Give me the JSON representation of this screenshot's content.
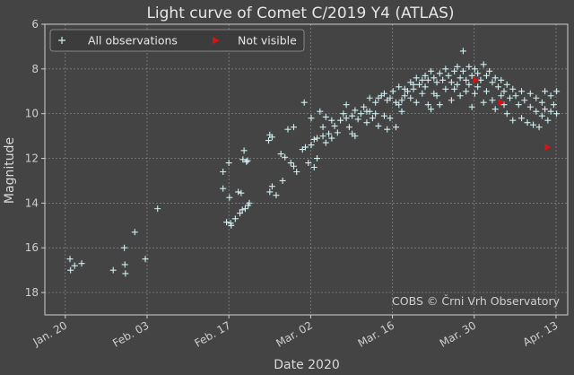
{
  "chart_data": {
    "type": "scatter",
    "title": "Light curve of Comet C/2019 Y4 (ATLAS)",
    "xlabel": "Date 2020",
    "ylabel": "Magnitude",
    "x_unit": "days since Jan. 20, 2020",
    "xlim": [
      -3.5,
      86
    ],
    "ylim": [
      19,
      6
    ],
    "y_inverted": true,
    "x_ticks": [
      {
        "value": 0,
        "label": "Jan. 20"
      },
      {
        "value": 14,
        "label": "Feb. 03"
      },
      {
        "value": 28,
        "label": "Feb. 17"
      },
      {
        "value": 42,
        "label": "Mar. 02"
      },
      {
        "value": 56,
        "label": "Mar. 16"
      },
      {
        "value": 70,
        "label": "Mar. 30"
      },
      {
        "value": 84,
        "label": "Apr. 13"
      }
    ],
    "y_ticks": [
      6,
      8,
      10,
      12,
      14,
      16,
      18
    ],
    "grid": true,
    "legend_position": "top-left",
    "credit": "COBS © Črni Vrh Observatory",
    "colors": {
      "background": "#444444",
      "observations": "#cfeef0",
      "not_visible": "#e01010",
      "axes": "#d0d0d0",
      "grid": "#8a8a8a"
    },
    "series": [
      {
        "name": "All observations",
        "marker": "plus",
        "points": [
          [
            0.8,
            16.5
          ],
          [
            0.9,
            17.0
          ],
          [
            1.6,
            16.8
          ],
          [
            2.8,
            16.7
          ],
          [
            8.2,
            17.0
          ],
          [
            10.1,
            16.0
          ],
          [
            10.2,
            16.75
          ],
          [
            10.3,
            17.15
          ],
          [
            11.9,
            15.3
          ],
          [
            13.7,
            16.5
          ],
          [
            15.8,
            14.25
          ],
          [
            27.0,
            12.6
          ],
          [
            27.0,
            13.35
          ],
          [
            28.0,
            12.2
          ],
          [
            28.1,
            13.75
          ],
          [
            28.3,
            14.9
          ],
          [
            28.4,
            15.0
          ],
          [
            27.6,
            14.85
          ],
          [
            29.1,
            14.7
          ],
          [
            29.6,
            13.5
          ],
          [
            29.9,
            14.45
          ],
          [
            30.1,
            13.55
          ],
          [
            30.3,
            14.3
          ],
          [
            30.4,
            12.05
          ],
          [
            30.6,
            11.65
          ],
          [
            30.8,
            14.25
          ],
          [
            31.0,
            12.15
          ],
          [
            31.2,
            12.1
          ],
          [
            31.3,
            14.1
          ],
          [
            31.5,
            14.0
          ],
          [
            34.8,
            11.2
          ],
          [
            35.0,
            10.95
          ],
          [
            35.0,
            13.5
          ],
          [
            35.4,
            11.05
          ],
          [
            35.4,
            13.25
          ],
          [
            36.1,
            13.65
          ],
          [
            36.9,
            11.8
          ],
          [
            37.2,
            13.0
          ],
          [
            37.6,
            11.95
          ],
          [
            38.1,
            10.7
          ],
          [
            38.6,
            12.2
          ],
          [
            39.1,
            10.6
          ],
          [
            39.1,
            12.35
          ],
          [
            39.6,
            12.6
          ],
          [
            40.6,
            11.6
          ],
          [
            40.9,
            9.5
          ],
          [
            41.1,
            11.5
          ],
          [
            41.6,
            12.2
          ],
          [
            42.1,
            11.4
          ],
          [
            42.1,
            10.2
          ],
          [
            42.6,
            12.4
          ],
          [
            42.6,
            11.15
          ],
          [
            43.1,
            11.1
          ],
          [
            43.1,
            12.0
          ],
          [
            43.6,
            9.9
          ],
          [
            44.1,
            11.0
          ],
          [
            44.1,
            10.6
          ],
          [
            44.6,
            11.3
          ],
          [
            44.6,
            10.15
          ],
          [
            45.1,
            10.9
          ],
          [
            45.6,
            11.1
          ],
          [
            45.6,
            10.3
          ],
          [
            46.1,
            10.55
          ],
          [
            46.6,
            10.85
          ],
          [
            47.1,
            10.3
          ],
          [
            47.6,
            10.0
          ],
          [
            48.1,
            10.2
          ],
          [
            48.1,
            9.6
          ],
          [
            48.6,
            10.6
          ],
          [
            49.1,
            10.1
          ],
          [
            49.1,
            10.9
          ],
          [
            49.6,
            9.85
          ],
          [
            49.6,
            11.0
          ],
          [
            50.1,
            10.25
          ],
          [
            50.6,
            10.0
          ],
          [
            51.1,
            9.7
          ],
          [
            51.6,
            9.9
          ],
          [
            51.6,
            10.4
          ],
          [
            52.1,
            9.9
          ],
          [
            52.1,
            9.3
          ],
          [
            52.6,
            10.2
          ],
          [
            53.1,
            9.5
          ],
          [
            53.1,
            10.0
          ],
          [
            53.6,
            9.3
          ],
          [
            53.6,
            10.55
          ],
          [
            54.1,
            9.2
          ],
          [
            54.6,
            9.1
          ],
          [
            54.6,
            10.1
          ],
          [
            55.1,
            10.7
          ],
          [
            55.1,
            9.4
          ],
          [
            55.6,
            9.3
          ],
          [
            55.6,
            10.2
          ],
          [
            56.1,
            9.0
          ],
          [
            56.6,
            10.6
          ],
          [
            56.6,
            9.5
          ],
          [
            57.1,
            8.8
          ],
          [
            57.1,
            9.6
          ],
          [
            57.6,
            9.4
          ],
          [
            57.6,
            9.9
          ],
          [
            58.1,
            8.9
          ],
          [
            58.1,
            9.2
          ],
          [
            58.6,
            9.0
          ],
          [
            59.1,
            8.6
          ],
          [
            59.1,
            9.3
          ],
          [
            59.6,
            8.7
          ],
          [
            59.6,
            8.9
          ],
          [
            60.1,
            8.4
          ],
          [
            60.1,
            9.5
          ],
          [
            60.6,
            8.7
          ],
          [
            61.1,
            8.5
          ],
          [
            61.1,
            9.1
          ],
          [
            61.6,
            8.3
          ],
          [
            61.6,
            8.8
          ],
          [
            62.1,
            8.5
          ],
          [
            62.1,
            9.6
          ],
          [
            62.6,
            8.1
          ],
          [
            62.6,
            9.8
          ],
          [
            63.1,
            8.4
          ],
          [
            63.1,
            9.1
          ],
          [
            63.6,
            8.6
          ],
          [
            63.6,
            9.2
          ],
          [
            64.1,
            8.2
          ],
          [
            64.1,
            9.6
          ],
          [
            64.6,
            8.5
          ],
          [
            65.1,
            8.0
          ],
          [
            65.1,
            8.9
          ],
          [
            65.6,
            8.3
          ],
          [
            66.1,
            8.6
          ],
          [
            66.1,
            9.4
          ],
          [
            66.6,
            8.1
          ],
          [
            66.6,
            8.9
          ],
          [
            67.1,
            7.9
          ],
          [
            67.1,
            8.7
          ],
          [
            67.6,
            8.4
          ],
          [
            67.6,
            9.2
          ],
          [
            68.1,
            7.2
          ],
          [
            68.1,
            8.1
          ],
          [
            68.6,
            8.5
          ],
          [
            68.6,
            9.0
          ],
          [
            69.1,
            7.9
          ],
          [
            69.1,
            8.7
          ],
          [
            69.6,
            8.3
          ],
          [
            69.6,
            9.7
          ],
          [
            70.1,
            8.0
          ],
          [
            70.1,
            9.1
          ],
          [
            70.6,
            8.2
          ],
          [
            70.6,
            8.8
          ],
          [
            71.1,
            8.5
          ],
          [
            71.6,
            7.8
          ],
          [
            71.6,
            9.5
          ],
          [
            72.1,
            8.3
          ],
          [
            72.1,
            9.0
          ],
          [
            72.6,
            8.1
          ],
          [
            73.1,
            8.6
          ],
          [
            73.1,
            9.4
          ],
          [
            73.6,
            8.4
          ],
          [
            73.6,
            9.8
          ],
          [
            74.1,
            8.8
          ],
          [
            74.6,
            8.5
          ],
          [
            74.6,
            9.2
          ],
          [
            75.1,
            9.0
          ],
          [
            75.1,
            9.6
          ],
          [
            75.6,
            8.7
          ],
          [
            75.6,
            10.0
          ],
          [
            76.1,
            9.3
          ],
          [
            76.6,
            8.9
          ],
          [
            76.6,
            10.3
          ],
          [
            77.1,
            9.2
          ],
          [
            77.6,
            9.6
          ],
          [
            78.1,
            9.0
          ],
          [
            78.1,
            10.2
          ],
          [
            78.6,
            9.4
          ],
          [
            79.1,
            10.4
          ],
          [
            79.6,
            9.1
          ],
          [
            79.6,
            9.7
          ],
          [
            80.1,
            10.5
          ],
          [
            80.6,
            9.3
          ],
          [
            80.6,
            9.9
          ],
          [
            81.1,
            10.6
          ],
          [
            81.6,
            9.5
          ],
          [
            81.6,
            10.1
          ],
          [
            82.1,
            9.0
          ],
          [
            82.1,
            9.8
          ],
          [
            82.6,
            10.3
          ],
          [
            83.1,
            9.2
          ],
          [
            83.1,
            9.9
          ],
          [
            83.6,
            9.6
          ],
          [
            84.1,
            9.0
          ],
          [
            84.1,
            10.0
          ]
        ]
      },
      {
        "name": "Not visible",
        "marker": "triangle-right",
        "points": [
          [
            70.2,
            8.5
          ],
          [
            74.6,
            9.5
          ],
          [
            82.5,
            11.5
          ]
        ]
      }
    ]
  }
}
